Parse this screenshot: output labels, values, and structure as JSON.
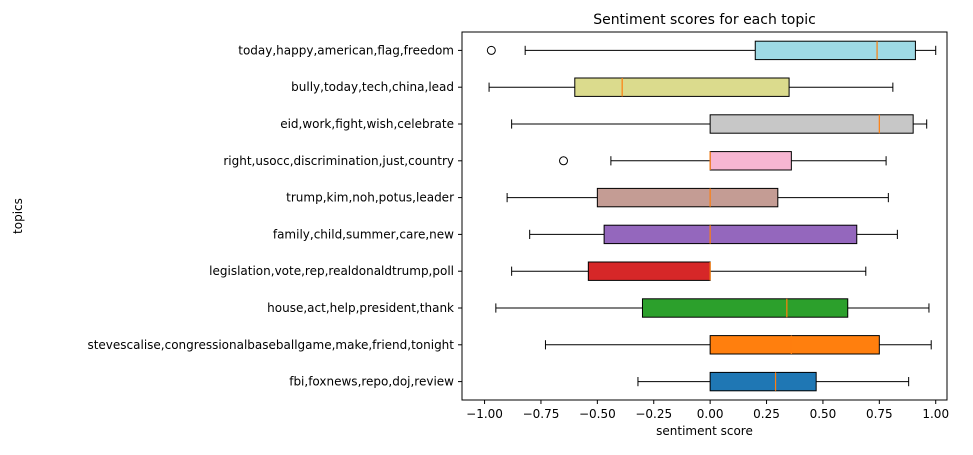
{
  "chart_data": {
    "type": "boxplot",
    "orientation": "horizontal",
    "title": "Sentiment scores for each topic",
    "xlabel": "sentiment score",
    "ylabel": "topics",
    "xlim": [
      -1.1,
      1.05
    ],
    "xticks": [
      -1.0,
      -0.75,
      -0.5,
      -0.25,
      0.0,
      0.25,
      0.5,
      0.75,
      1.0
    ],
    "xtick_labels": [
      "−1.00",
      "−0.75",
      "−0.50",
      "−0.25",
      "0.00",
      "0.25",
      "0.50",
      "0.75",
      "1.00"
    ],
    "grid": false,
    "median_color": "#ff7f0e",
    "categories": [
      "fbi,foxnews,repo,doj,review",
      "stevescalise,congressionalbaseballgame,make,friend,tonight",
      "house,act,help,president,thank",
      "legislation,vote,rep,realdonaldtrump,poll",
      "family,child,summer,care,new",
      "trump,kim,noh,potus,leader",
      "right,usocc,discrimination,just,country",
      "eid,work,fight,wish,celebrate",
      "bully,today,tech,china,lead",
      "today,happy,american,flag,freedom"
    ],
    "boxes": [
      {
        "whislo": -0.32,
        "q1": 0.0,
        "med": 0.29,
        "q3": 0.47,
        "whishi": 0.88,
        "fliers": [],
        "color": "#1f77b4"
      },
      {
        "whislo": -0.73,
        "q1": 0.0,
        "med": 0.36,
        "q3": 0.75,
        "whishi": 0.98,
        "fliers": [],
        "color": "#ff7f0e"
      },
      {
        "whislo": -0.95,
        "q1": -0.3,
        "med": 0.34,
        "q3": 0.61,
        "whishi": 0.97,
        "fliers": [],
        "color": "#2ca02c"
      },
      {
        "whislo": -0.88,
        "q1": -0.54,
        "med": 0.0,
        "q3": 0.0,
        "whishi": 0.69,
        "fliers": [],
        "color": "#d62728"
      },
      {
        "whislo": -0.8,
        "q1": -0.47,
        "med": 0.0,
        "q3": 0.65,
        "whishi": 0.83,
        "fliers": [],
        "color": "#9467bd"
      },
      {
        "whislo": -0.9,
        "q1": -0.5,
        "med": 0.0,
        "q3": 0.3,
        "whishi": 0.79,
        "fliers": [],
        "color": "#c49c94"
      },
      {
        "whislo": -0.44,
        "q1": 0.0,
        "med": 0.0,
        "q3": 0.36,
        "whishi": 0.78,
        "fliers": [
          -0.65
        ],
        "color": "#f7b6d2"
      },
      {
        "whislo": -0.88,
        "q1": 0.0,
        "med": 0.75,
        "q3": 0.9,
        "whishi": 0.96,
        "fliers": [],
        "color": "#c7c7c7"
      },
      {
        "whislo": -0.98,
        "q1": -0.6,
        "med": -0.39,
        "q3": 0.35,
        "whishi": 0.81,
        "fliers": [],
        "color": "#dbdb8d"
      },
      {
        "whislo": -0.82,
        "q1": 0.2,
        "med": 0.74,
        "q3": 0.91,
        "whishi": 1.0,
        "fliers": [
          -0.97
        ],
        "color": "#9edae5"
      }
    ]
  }
}
